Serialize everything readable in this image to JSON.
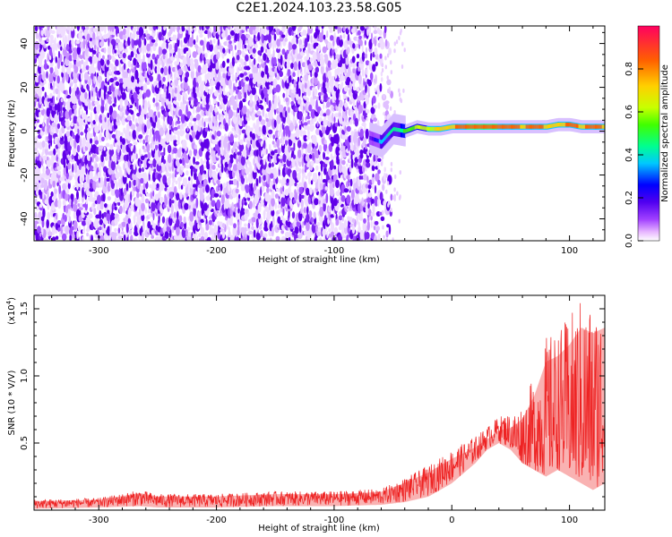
{
  "title": "C2E1.2024.103.23.58.G05",
  "chart_data": [
    {
      "type": "heatmap",
      "title": "C2E1.2024.103.23.58.G05",
      "xlabel": "Height of straight line (km)",
      "ylabel": "Frequency (Hz)",
      "xlim": [
        -355,
        130
      ],
      "ylim": [
        -50,
        48
      ],
      "xticks": [
        -300,
        -200,
        -100,
        0,
        100
      ],
      "yticks": [
        -40,
        -20,
        0,
        20,
        40
      ],
      "colorbar": {
        "label": "Normalized spectral amplitude",
        "range": [
          0.0,
          1.0
        ],
        "ticks": [
          "0.0",
          "0.2",
          "0.4",
          "0.6",
          "0.8"
        ],
        "colors": [
          "#ffffff",
          "#e8b8ff",
          "#a040ff",
          "#5000f0",
          "#0000ff",
          "#00c8ff",
          "#00ff90",
          "#40ff00",
          "#c8ff00",
          "#ffd000",
          "#ff6000",
          "#ff0060"
        ]
      },
      "noise_region_x": [
        -355,
        -50
      ],
      "signal_ridge": {
        "x": [
          -70,
          -60,
          -50,
          -40,
          -30,
          -20,
          -10,
          0,
          10,
          20,
          30,
          40,
          50,
          60,
          70,
          80,
          90,
          100,
          110,
          120,
          130
        ],
        "frequency": [
          -3,
          -5,
          1,
          0,
          2,
          1,
          1,
          2,
          2,
          2,
          2,
          2,
          2,
          2,
          2,
          2,
          3,
          3,
          2,
          2,
          2
        ],
        "amplitude": [
          0.25,
          0.45,
          0.55,
          0.6,
          0.7,
          0.75,
          0.8,
          0.85,
          0.9,
          0.95,
          0.95,
          0.9,
          0.9,
          0.85,
          0.9,
          0.85,
          0.8,
          0.9,
          0.85,
          0.9,
          0.85
        ]
      }
    },
    {
      "type": "line",
      "xlabel": "Height of straight line (km)",
      "ylabel": "SNR (10 * V/V)",
      "y_multiplier": "(x10",
      "y_multiplier_exp": "4",
      "xlim": [
        -355,
        130
      ],
      "ylim": [
        0,
        1.6
      ],
      "xticks": [
        -300,
        -200,
        -100,
        0,
        100
      ],
      "yticks": [
        "0.5",
        "1.0",
        "1.5"
      ],
      "ytick_values": [
        0.5,
        1.0,
        1.5
      ],
      "color": "#ee2222",
      "envelope": {
        "x": [
          -355,
          -300,
          -265,
          -250,
          -200,
          -150,
          -100,
          -60,
          -40,
          -20,
          0,
          20,
          30,
          40,
          50,
          60,
          70,
          80,
          90,
          100,
          110,
          120,
          130
        ],
        "low": [
          0.01,
          0.02,
          0.03,
          0.02,
          0.02,
          0.03,
          0.03,
          0.04,
          0.06,
          0.1,
          0.2,
          0.35,
          0.45,
          0.5,
          0.45,
          0.35,
          0.3,
          0.25,
          0.3,
          0.25,
          0.2,
          0.15,
          0.2
        ],
        "high": [
          0.08,
          0.09,
          0.15,
          0.12,
          0.12,
          0.14,
          0.14,
          0.16,
          0.24,
          0.33,
          0.45,
          0.55,
          0.62,
          0.7,
          0.72,
          0.8,
          1.0,
          1.3,
          1.35,
          1.45,
          1.6,
          1.55,
          1.6
        ]
      }
    }
  ]
}
